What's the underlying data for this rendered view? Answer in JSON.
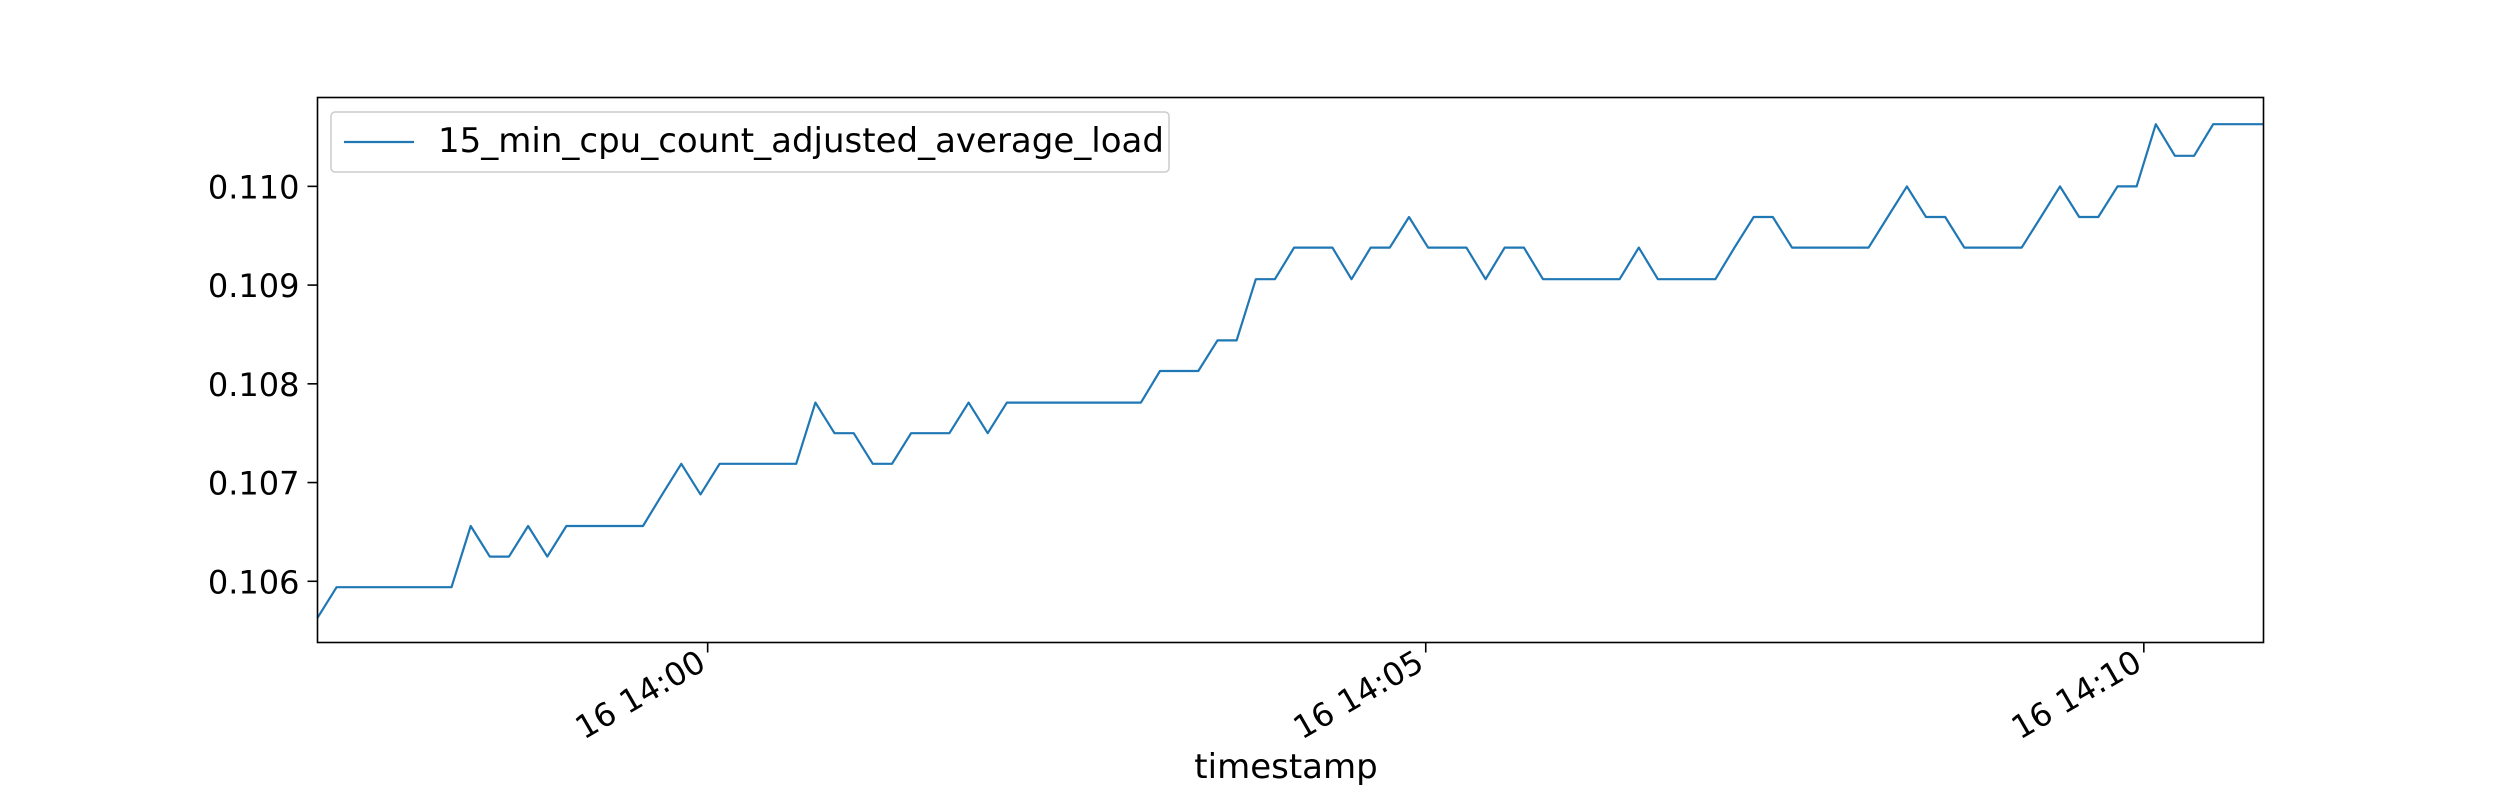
{
  "chart_data": {
    "type": "line",
    "title": "",
    "xlabel": "timestamp",
    "ylabel": "",
    "x_tick_labels": [
      "16 14:00",
      "16 14:05",
      "16 14:10"
    ],
    "x_tick_values": [
      "14:00",
      "14:05",
      "14:10"
    ],
    "y_ticks": [
      0.106,
      0.107,
      0.108,
      0.109,
      0.11
    ],
    "y_tick_labels": [
      "0.106",
      "0.107",
      "0.108",
      "0.109",
      "0.110"
    ],
    "xlim": [
      "13:57:17",
      "14:10:50"
    ],
    "ylim": [
      0.10538,
      0.1109
    ],
    "grid": false,
    "legend": "top-left",
    "series": [
      {
        "name": "15_min_cpu_count_adjusted_average_load",
        "color": "#1f77b4",
        "x": [
          "13:57:17",
          "13:57:25",
          "13:57:33",
          "13:57:41",
          "13:57:49",
          "13:57:57",
          "13:58:05",
          "13:58:13",
          "13:58:21",
          "13:58:29",
          "13:58:37",
          "13:58:45",
          "13:58:53",
          "13:59:01",
          "13:59:09",
          "13:59:17",
          "13:59:25",
          "13:59:33",
          "13:59:41",
          "13:59:49",
          "13:59:57",
          "14:00:05",
          "14:00:13",
          "14:00:21",
          "14:00:29",
          "14:00:37",
          "14:00:45",
          "14:00:53",
          "14:01:01",
          "14:01:09",
          "14:01:17",
          "14:01:25",
          "14:01:33",
          "14:01:41",
          "14:01:49",
          "14:01:57",
          "14:02:05",
          "14:02:13",
          "14:02:21",
          "14:02:29",
          "14:02:37",
          "14:02:45",
          "14:02:53",
          "14:03:01",
          "14:03:09",
          "14:03:17",
          "14:03:25",
          "14:03:33",
          "14:03:41",
          "14:03:49",
          "14:03:57",
          "14:04:05",
          "14:04:13",
          "14:04:21",
          "14:04:29",
          "14:04:37",
          "14:04:45",
          "14:04:53",
          "14:05:01",
          "14:05:09",
          "14:05:17",
          "14:05:25",
          "14:05:33",
          "14:05:41",
          "14:05:49",
          "14:05:57",
          "14:06:05",
          "14:06:13",
          "14:06:21",
          "14:06:29",
          "14:06:37",
          "14:06:45",
          "14:06:53",
          "14:07:01",
          "14:07:09",
          "14:07:17",
          "14:07:25",
          "14:07:33",
          "14:07:41",
          "14:07:49",
          "14:07:57",
          "14:08:05",
          "14:08:13",
          "14:08:21",
          "14:08:29",
          "14:08:37",
          "14:08:45",
          "14:08:53",
          "14:09:01",
          "14:09:09",
          "14:09:17",
          "14:09:25",
          "14:09:33",
          "14:09:41",
          "14:09:49",
          "14:09:57",
          "14:10:05",
          "14:10:13",
          "14:10:21",
          "14:10:29",
          "14:10:37",
          "14:10:45",
          "14:10:50"
        ],
        "values": [
          0.10563,
          0.10594,
          0.10594,
          0.10594,
          0.10594,
          0.10594,
          0.10594,
          0.10594,
          0.10656,
          0.10625,
          0.10625,
          0.10656,
          0.10625,
          0.10656,
          0.10656,
          0.10656,
          0.10656,
          0.10656,
          0.10688,
          0.10719,
          0.10688,
          0.10719,
          0.10719,
          0.10719,
          0.10719,
          0.10719,
          0.10781,
          0.1075,
          0.1075,
          0.10719,
          0.10719,
          0.1075,
          0.1075,
          0.1075,
          0.10781,
          0.1075,
          0.10781,
          0.10781,
          0.10781,
          0.10781,
          0.10781,
          0.10781,
          0.10781,
          0.10781,
          0.10813,
          0.10813,
          0.10813,
          0.10844,
          0.10844,
          0.10906,
          0.10906,
          0.10938,
          0.10938,
          0.10938,
          0.10906,
          0.10938,
          0.10938,
          0.10969,
          0.10938,
          0.10938,
          0.10938,
          0.10906,
          0.10938,
          0.10938,
          0.10906,
          0.10906,
          0.10906,
          0.10906,
          0.10906,
          0.10938,
          0.10906,
          0.10906,
          0.10906,
          0.10906,
          0.10938,
          0.10969,
          0.10969,
          0.10938,
          0.10938,
          0.10938,
          0.10938,
          0.10938,
          0.10969,
          0.11,
          0.10969,
          0.10969,
          0.10938,
          0.10938,
          0.10938,
          0.10938,
          0.10969,
          0.11,
          0.10969,
          0.10969,
          0.11,
          0.11,
          0.11063,
          0.11031,
          0.11031,
          0.11063,
          0.11063,
          0.11063,
          0.11063
        ]
      }
    ]
  }
}
